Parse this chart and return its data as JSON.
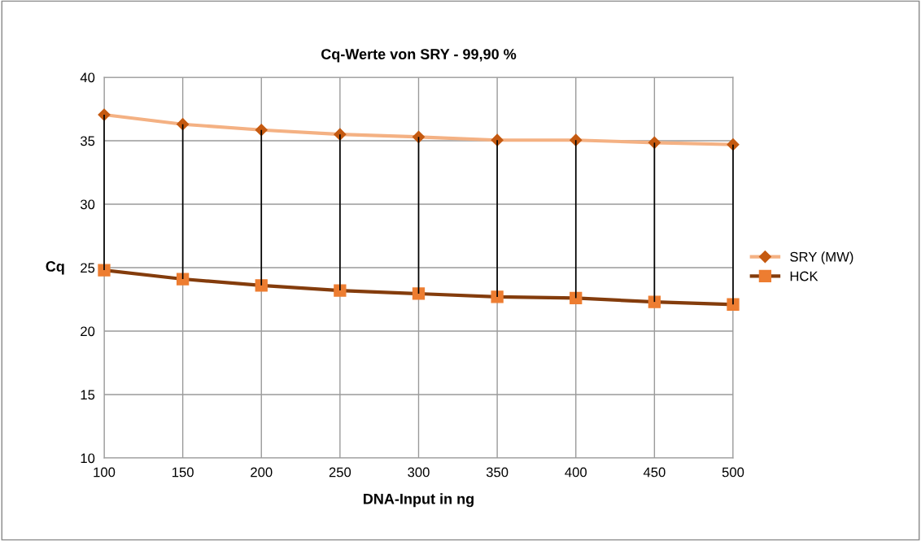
{
  "chart_data": {
    "type": "line",
    "title": "Cq-Werte von SRY - 99,90 %",
    "xlabel": "DNA-Input in ng",
    "ylabel": "Cq",
    "x": [
      100,
      150,
      200,
      250,
      300,
      350,
      400,
      450,
      500
    ],
    "series": [
      {
        "name": "SRY (MW)",
        "color": "#f4b183",
        "marker": "diamond",
        "values": [
          37.05,
          36.3,
          35.85,
          35.5,
          35.3,
          35.05,
          35.05,
          34.85,
          34.7
        ],
        "errors": [
          [
            24.8,
            37.05
          ],
          [
            24.1,
            36.3
          ],
          [
            23.6,
            35.85
          ],
          [
            23.2,
            35.5
          ],
          [
            22.95,
            35.3
          ],
          [
            22.7,
            35.05
          ],
          [
            22.6,
            35.05
          ],
          [
            22.3,
            34.85
          ],
          [
            22.1,
            34.7
          ]
        ]
      },
      {
        "name": "HCK",
        "color": "#843c0c",
        "marker": "square",
        "values": [
          24.8,
          24.1,
          23.6,
          23.2,
          22.95,
          22.7,
          22.6,
          22.3,
          22.1
        ]
      }
    ],
    "xlim": [
      100,
      500
    ],
    "xticks": [
      100,
      150,
      200,
      250,
      300,
      350,
      400,
      450,
      500
    ],
    "ylim": [
      10,
      40
    ],
    "yticks": [
      10,
      15,
      20,
      25,
      30,
      35,
      40
    ],
    "grid": true,
    "legend": "right",
    "line_style": "solid"
  }
}
